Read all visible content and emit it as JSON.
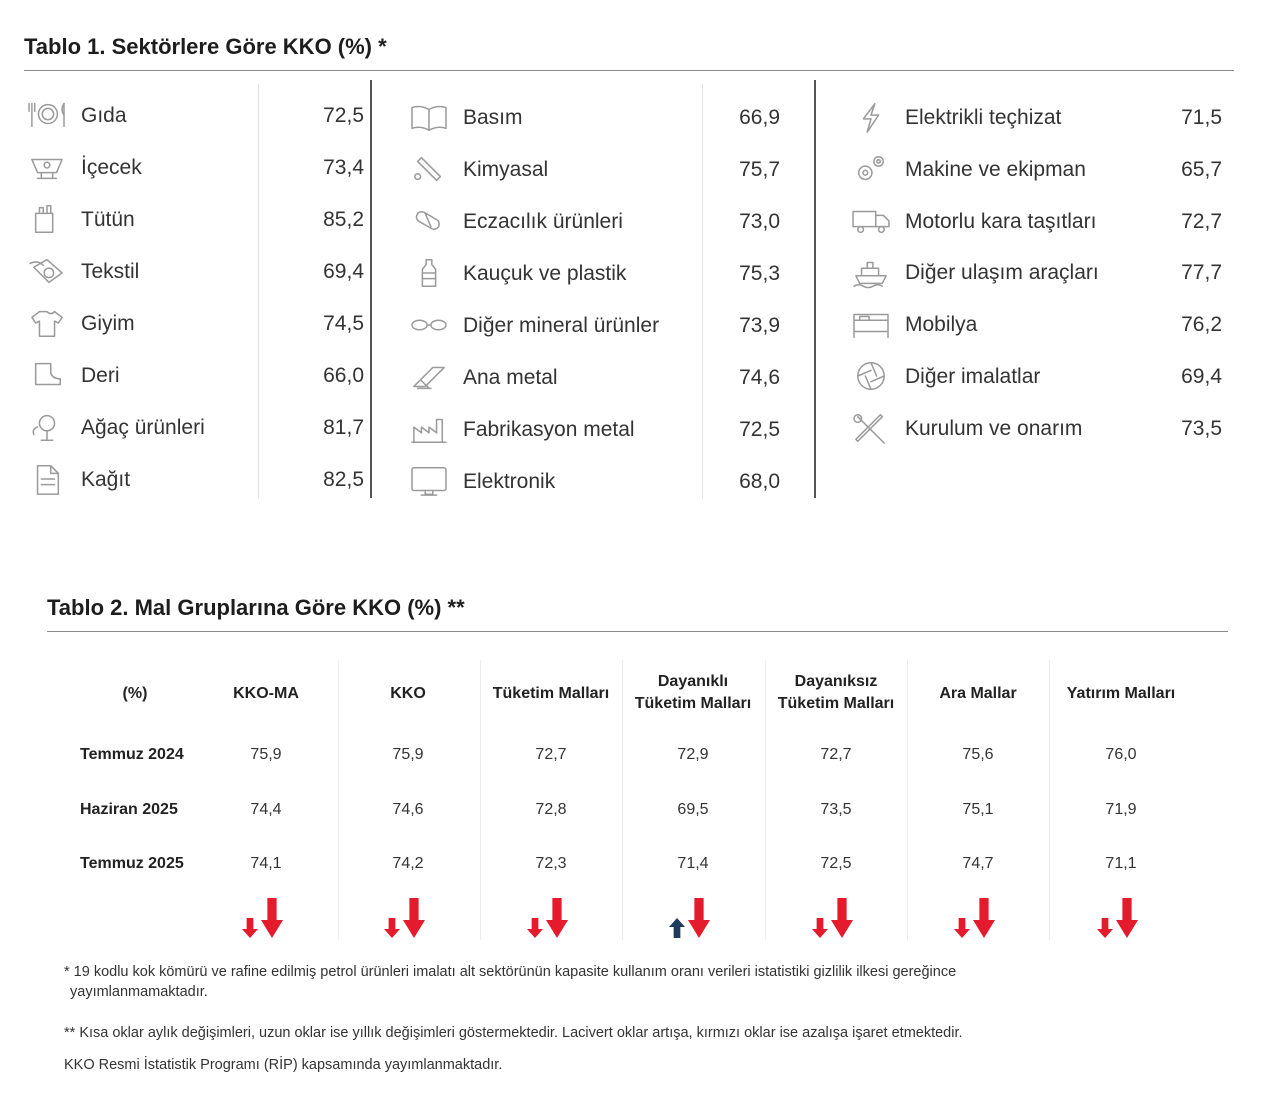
{
  "table1": {
    "title": "Tablo 1. Sektörlere Göre KKO (%) *",
    "columns": [
      [
        {
          "icon": "cutlery-plate-icon",
          "label": "Gıda",
          "value": "72,5"
        },
        {
          "icon": "drink-cup-icon",
          "label": "İçecek",
          "value": "73,4"
        },
        {
          "icon": "tobacco-pack-icon",
          "label": "Tütün",
          "value": "85,2"
        },
        {
          "icon": "yarn-spool-icon",
          "label": "Tekstil",
          "value": "69,4"
        },
        {
          "icon": "tshirt-icon",
          "label": "Giyim",
          "value": "74,5"
        },
        {
          "icon": "leather-boot-icon",
          "label": "Deri",
          "value": "66,0"
        },
        {
          "icon": "tree-icon",
          "label": "Ağaç ürünleri",
          "value": "81,7"
        },
        {
          "icon": "paper-sheet-icon",
          "label": "Kağıt",
          "value": "82,5"
        }
      ],
      [
        {
          "icon": "open-book-icon",
          "label": "Basım",
          "value": "66,9"
        },
        {
          "icon": "test-tube-icon",
          "label": "Kimyasal",
          "value": "75,7"
        },
        {
          "icon": "pill-capsule-icon",
          "label": "Eczacılık ürünleri",
          "value": "73,0"
        },
        {
          "icon": "plastic-bottle-icon",
          "label": "Kauçuk ve plastik",
          "value": "75,3"
        },
        {
          "icon": "glasses-icon",
          "label": "Diğer mineral ürünler",
          "value": "73,9"
        },
        {
          "icon": "metal-beam-icon",
          "label": "Ana metal",
          "value": "74,6"
        },
        {
          "icon": "factory-icon",
          "label": "Fabrikasyon metal",
          "value": "72,5"
        },
        {
          "icon": "monitor-icon",
          "label": "Elektronik",
          "value": "68,0"
        }
      ],
      [
        {
          "icon": "lightning-bolt-icon",
          "label": "Elektrikli teçhizat",
          "value": "71,5"
        },
        {
          "icon": "gears-icon",
          "label": "Makine ve ekipman",
          "value": "65,7"
        },
        {
          "icon": "truck-icon",
          "label": "Motorlu kara taşıtları",
          "value": "72,7"
        },
        {
          "icon": "ship-icon",
          "label": "Diğer ulaşım araçları",
          "value": "77,7"
        },
        {
          "icon": "bed-icon",
          "label": "Mobilya",
          "value": "76,2"
        },
        {
          "icon": "aperture-icon",
          "label": "Diğer imalatlar",
          "value": "69,4"
        },
        {
          "icon": "wrench-screwdriver-icon",
          "label": "Kurulum ve onarım",
          "value": "73,5"
        }
      ]
    ]
  },
  "table2": {
    "title": "Tablo 2. Mal Gruplarına Göre KKO (%) **",
    "corner": "(%)",
    "headers": [
      {
        "line1": "KKO-MA",
        "line2": ""
      },
      {
        "line1": "KKO",
        "line2": ""
      },
      {
        "line1": "Tüketim Malları",
        "line2": ""
      },
      {
        "line1": "Dayanıklı",
        "line2": "Tüketim Malları"
      },
      {
        "line1": "Dayanıksız",
        "line2": "Tüketim Malları"
      },
      {
        "line1": "Ara Mallar",
        "line2": ""
      },
      {
        "line1": "Yatırım Malları",
        "line2": ""
      }
    ],
    "rows": [
      {
        "label": "Temmuz 2024",
        "values": [
          "75,9",
          "75,9",
          "72,7",
          "72,9",
          "72,7",
          "75,6",
          "76,0"
        ]
      },
      {
        "label": "Haziran 2025",
        "values": [
          "74,4",
          "74,6",
          "72,8",
          "69,5",
          "73,5",
          "75,1",
          "71,9"
        ]
      },
      {
        "label": "Temmuz 2025",
        "values": [
          "74,1",
          "74,2",
          "72,3",
          "71,4",
          "72,5",
          "74,7",
          "71,1"
        ]
      }
    ],
    "arrows": [
      {
        "monthly": "down",
        "annual": "down"
      },
      {
        "monthly": "down",
        "annual": "down"
      },
      {
        "monthly": "down",
        "annual": "down"
      },
      {
        "monthly": "up",
        "annual": "down"
      },
      {
        "monthly": "down",
        "annual": "down"
      },
      {
        "monthly": "down",
        "annual": "down"
      },
      {
        "monthly": "down",
        "annual": "down"
      }
    ],
    "colors": {
      "decrease": "#e41b2c",
      "increase": "#1f3a5f"
    }
  },
  "notes": {
    "note1_line1": "* 19 kodlu kok kömürü ve rafine edilmiş petrol ürünleri imalatı alt sektörünün kapasite kullanım oranı verileri istatistiki gizlilik ilkesi gereğince",
    "note1_line2": "yayımlanmamaktadır.",
    "note2": "** Kısa oklar aylık değişimleri, uzun oklar ise yıllık değişimleri göstermektedir. Lacivert oklar artışa, kırmızı oklar ise azalışa işaret etmektedir.",
    "note3": "KKO Resmi İstatistik Programı (RİP) kapsamında yayımlanmaktadır."
  }
}
